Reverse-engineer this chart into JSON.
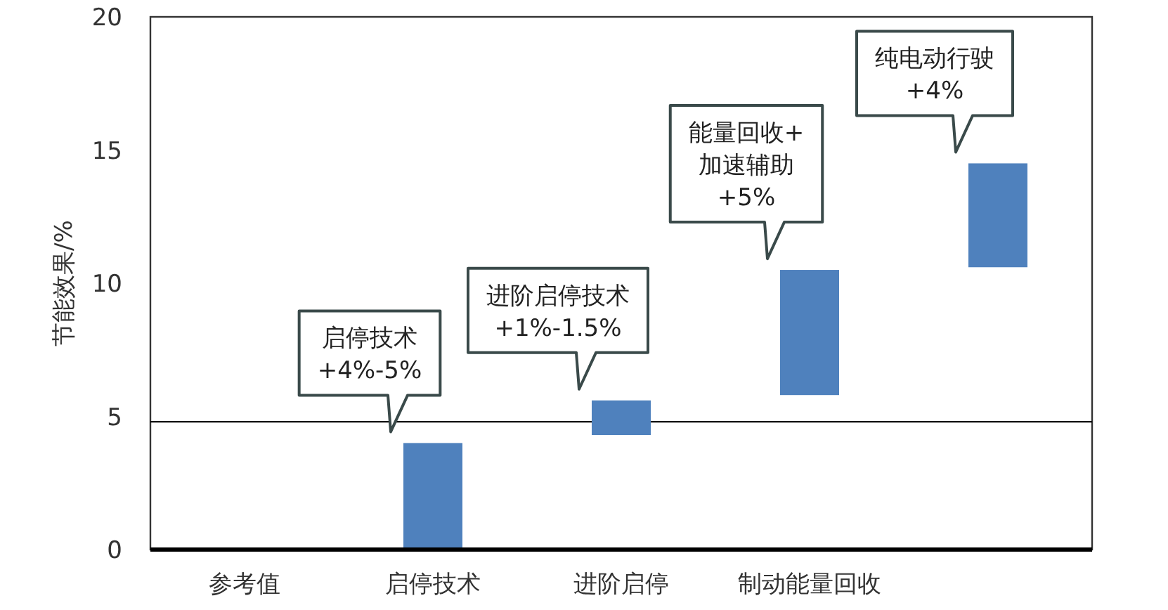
{
  "chart_data": {
    "type": "bar",
    "ylabel": "节能效果/%",
    "categories": [
      "参考值",
      "启停技术",
      "进阶启停",
      "制动能量回收",
      null
    ],
    "values": [
      null,
      4.0,
      1.3,
      4.7,
      3.9
    ],
    "base": [
      null,
      0,
      4.3,
      5.8,
      10.6
    ],
    "color": "#4f81bd",
    "ylim": [
      0,
      20
    ],
    "yticks": [
      0,
      5,
      10,
      15,
      20
    ],
    "grid": false,
    "ref_lines": [
      {
        "axis": "y",
        "value": 4.8,
        "color": "#000000"
      }
    ],
    "annotations": [
      "启停技术\n+4%-5%",
      "进阶启停技术\n+1%-1.5%",
      "能量回收+\n加速辅助\n+5%",
      "纯电动行驶\n+4%"
    ]
  }
}
